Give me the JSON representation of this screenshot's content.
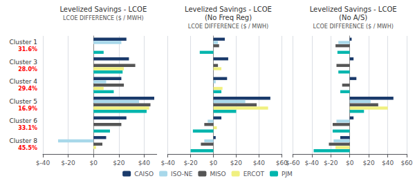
{
  "chart_data": [
    {
      "type": "bar",
      "orientation": "horizontal",
      "title": "Levelized Savings - LCOE",
      "subtitle": "LCOE DIFFERENCE ($ / MWH)",
      "categories": [
        "Cluster 1",
        "Cluster 3",
        "Cluster 4",
        "Cluster 5",
        "Cluster 6",
        "Cluster 8"
      ],
      "annotations": [
        "31.6%",
        "28.0%",
        "29.4%",
        "16.9%",
        "33.1%",
        "45.5%"
      ],
      "series": [
        {
          "name": "CAISO",
          "color": "#1a3a6b",
          "values": [
            26,
            28,
            22,
            48,
            26,
            10
          ]
        },
        {
          "name": "ISO-NE",
          "color": "#a8d8ea",
          "values": [
            22,
            0,
            10,
            36,
            0,
            -28
          ]
        },
        {
          "name": "MISO",
          "color": "#555555",
          "values": [
            0,
            33,
            24,
            45,
            22,
            7
          ]
        },
        {
          "name": "ERCOT",
          "color": "#f0f080",
          "values": [
            0,
            24,
            8,
            44,
            0,
            2
          ]
        },
        {
          "name": "PJM",
          "color": "#00b5ad",
          "values": [
            8,
            23,
            16,
            42,
            13,
            0
          ]
        }
      ],
      "xlim": [
        -40,
        50
      ],
      "xticks": [
        {
          "value": -40,
          "label": "$-40"
        },
        {
          "value": -20,
          "label": "$-20"
        },
        {
          "value": 0,
          "label": "$0"
        },
        {
          "value": 20,
          "label": "$20"
        },
        {
          "value": 40,
          "label": "$40"
        }
      ],
      "grid": true
    },
    {
      "type": "bar",
      "orientation": "horizontal",
      "title": "Levelized Savings - LCOE\n(No Freq Reg)",
      "subtitle": "LCOE DIFFERENCE ($ / MWH)",
      "categories": [
        null,
        null,
        null,
        null,
        null,
        null
      ],
      "series": [
        {
          "name": "CAISO",
          "color": "#1a3a6b",
          "values": [
            10,
            13,
            12,
            50,
            7,
            2
          ]
        },
        {
          "name": "ISO-NE",
          "color": "#a8d8ea",
          "values": [
            4,
            0,
            2,
            28,
            -5,
            -8
          ]
        },
        {
          "name": "MISO",
          "color": "#555555",
          "values": [
            5,
            4,
            0,
            38,
            -8,
            -11
          ]
        },
        {
          "name": "ERCOT",
          "color": "#f0f080",
          "values": [
            0,
            7,
            8,
            48,
            3,
            0
          ]
        },
        {
          "name": "PJM",
          "color": "#00b5ad",
          "values": [
            -12,
            0,
            7,
            20,
            -18,
            -20
          ]
        }
      ],
      "xlim": [
        -40,
        60
      ],
      "xticks": [
        {
          "value": -40,
          "label": "$-40"
        },
        {
          "value": -20,
          "label": "$-20"
        },
        {
          "value": 0,
          "label": "$0"
        },
        {
          "value": 20,
          "label": "$20"
        },
        {
          "value": 40,
          "label": "$40"
        },
        {
          "value": 60,
          "label": "$60"
        }
      ],
      "grid": true,
      "legend": "bottom"
    },
    {
      "type": "bar",
      "orientation": "horizontal",
      "title": "Levelized Savings - LCOE\n(No A/S)",
      "subtitle": "LCOE DIFFERENCE ($ / MWH)",
      "categories": [
        null,
        null,
        null,
        null,
        null,
        null
      ],
      "series": [
        {
          "name": "CAISO",
          "color": "#1a3a6b",
          "values": [
            2,
            4,
            7,
            46,
            4,
            -10
          ]
        },
        {
          "name": "ISO-NE",
          "color": "#a8d8ea",
          "values": [
            -12,
            0,
            0,
            22,
            -14,
            -17
          ]
        },
        {
          "name": "MISO",
          "color": "#555555",
          "values": [
            -15,
            -14,
            -8,
            30,
            -18,
            -22
          ]
        },
        {
          "name": "ERCOT",
          "color": "#f0f080",
          "values": [
            0,
            0,
            0,
            40,
            0,
            -15
          ]
        },
        {
          "name": "PJM",
          "color": "#00b5ad",
          "values": [
            -13,
            -12,
            -10,
            15,
            -18,
            -38
          ]
        }
      ],
      "xlim": [
        -60,
        60
      ],
      "xticks": [
        {
          "value": -60,
          "label": "$-60"
        },
        {
          "value": -40,
          "label": "$-40"
        },
        {
          "value": -20,
          "label": "$-20"
        },
        {
          "value": 0,
          "label": "$0"
        },
        {
          "value": 20,
          "label": "$20"
        },
        {
          "value": 40,
          "label": "$40"
        },
        {
          "value": 60,
          "label": "$60"
        }
      ],
      "grid": true
    }
  ]
}
